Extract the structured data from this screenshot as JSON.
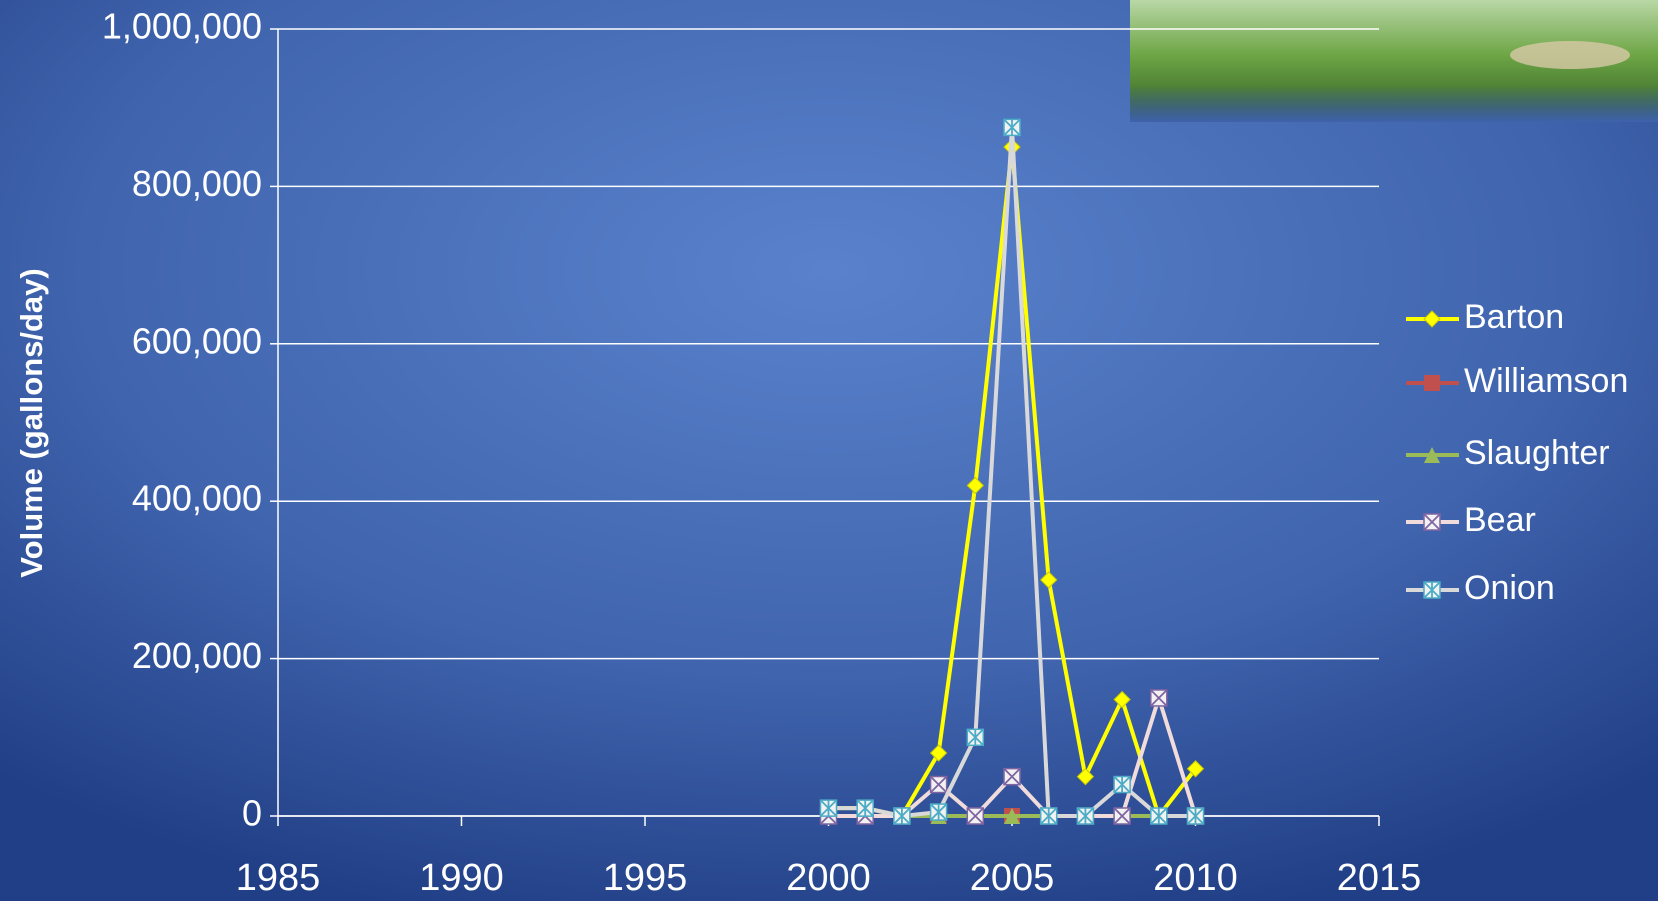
{
  "chart_data": {
    "type": "line",
    "y_label": "Volume (gallons/day)",
    "x": [
      2000,
      2001,
      2002,
      2003,
      2004,
      2005,
      2006,
      2007,
      2008,
      2009,
      2010
    ],
    "series": [
      {
        "name": "Barton",
        "color": "#ffff00",
        "marker_color": "#ffff00",
        "marker": "diamond",
        "values": [
          10000,
          10000,
          0,
          80000,
          420000,
          850000,
          300000,
          50000,
          148000,
          0,
          60000
        ]
      },
      {
        "name": "Williamson",
        "color": "#c0504d",
        "marker_color": "#c0504d",
        "marker": "square",
        "values": [
          0,
          0,
          0,
          0,
          0,
          0,
          0,
          0,
          0,
          0,
          0
        ]
      },
      {
        "name": "Slaughter",
        "color": "#9bbb59",
        "marker_color": "#9bbb59",
        "marker": "triangle",
        "values": [
          0,
          0,
          0,
          0,
          0,
          0,
          0,
          0,
          0,
          0,
          0
        ]
      },
      {
        "name": "Bear",
        "color": "#f2dcdb",
        "marker_color": "#8064a2",
        "marker": "x-square",
        "values": [
          0,
          0,
          0,
          40000,
          0,
          50000,
          0,
          0,
          0,
          150000,
          0
        ]
      },
      {
        "name": "Onion",
        "color": "#d9d9d9",
        "marker_color": "#4bacc6",
        "marker": "star-square",
        "values": [
          10000,
          10000,
          0,
          5000,
          100000,
          875000,
          0,
          0,
          40000,
          0,
          0
        ]
      }
    ],
    "xlim": [
      1985,
      2015
    ],
    "xticks": [
      1985,
      1990,
      1995,
      2000,
      2005,
      2010,
      2015
    ],
    "ylim": [
      0,
      1000000
    ],
    "yticks": [
      0,
      {
        "value": 200000,
        "label": "200,000"
      },
      {
        "value": 400000,
        "label": "400,000"
      },
      {
        "value": 600000,
        "label": "600,000"
      },
      {
        "value": 800000,
        "label": "800,000"
      },
      {
        "value": 1000000,
        "label": "1,000,000"
      }
    ],
    "grid": true
  }
}
